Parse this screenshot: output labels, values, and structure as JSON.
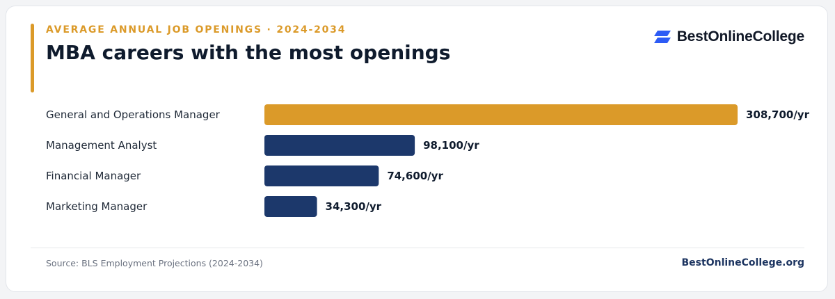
{
  "header": {
    "eyebrow": "AVERAGE ANNUAL JOB OPENINGS · 2024-2034",
    "title": "MBA careers with the most openings"
  },
  "brand": {
    "name": "BestOnlineCollege",
    "icon": "parallelogram-stack-logo-icon"
  },
  "footer": {
    "source": "Source: BLS Employment Projections (2024-2034)",
    "site": "BestOnlineCollege.org"
  },
  "colors": {
    "accent": "#db9a29",
    "bar": "#1c386b",
    "text": "#0f1b2d",
    "logo_blue": "#2d5bf5"
  },
  "chart_data": {
    "type": "bar",
    "orientation": "horizontal",
    "categories": [
      "General and Operations Manager",
      "Management Analyst",
      "Financial Manager",
      "Marketing Manager"
    ],
    "values": [
      308700,
      98100,
      74600,
      34300
    ],
    "value_labels": [
      "308,700/yr",
      "98,100/yr",
      "74,600/yr",
      "34,300/yr"
    ],
    "highlight_index": 0,
    "xlim": [
      0,
      308700
    ],
    "grid": false,
    "legend": "none"
  }
}
